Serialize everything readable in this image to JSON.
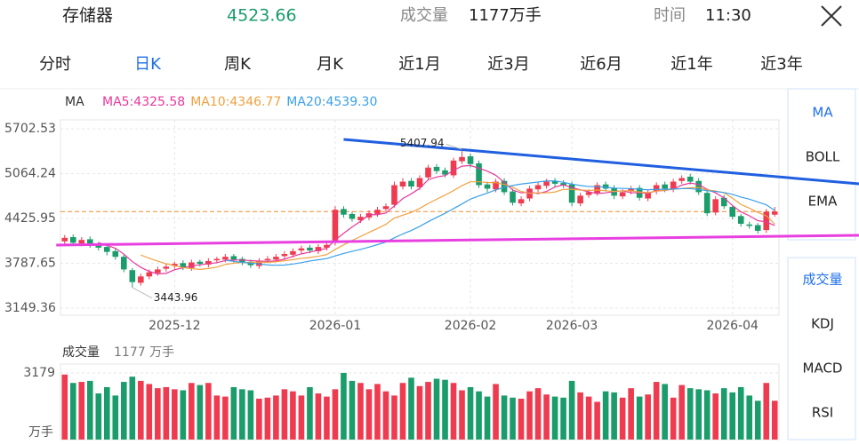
{
  "header": {
    "name": "存储器",
    "price": 4523.66,
    "price_color": "#1a9c6b",
    "volume_label": "成交量",
    "volume": "1177万手",
    "time_label": "时间",
    "time": "11:30"
  },
  "tabs": {
    "items": [
      "分时",
      "日K",
      "周K",
      "月K",
      "近1月",
      "近3月",
      "近6月",
      "近1年",
      "近3年"
    ],
    "active": 1
  },
  "indicators": {
    "main": [
      "MA",
      "BOLL",
      "EMA"
    ],
    "main_active": 0,
    "sub": [
      "成交量",
      "KDJ",
      "MACD",
      "RSI"
    ],
    "sub_active": 0
  },
  "chart_data": [
    {
      "type": "candlestick",
      "legend_title": "MA",
      "up_color": "#ef3b4f",
      "down_color": "#1a9c6b",
      "categories": [
        null,
        null,
        null,
        null,
        null,
        null,
        null,
        null,
        null,
        null,
        null,
        null,
        null,
        "2025-12",
        null,
        null,
        null,
        null,
        null,
        null,
        null,
        null,
        null,
        null,
        null,
        null,
        null,
        null,
        null,
        null,
        null,
        null,
        "2026-01",
        null,
        null,
        null,
        null,
        null,
        null,
        null,
        null,
        null,
        null,
        null,
        null,
        null,
        null,
        null,
        "2026-02",
        null,
        null,
        null,
        null,
        null,
        null,
        null,
        null,
        null,
        null,
        null,
        "2026-03",
        null,
        null,
        null,
        null,
        null,
        null,
        null,
        null,
        null,
        null,
        null,
        null,
        null,
        null,
        null,
        null,
        null,
        null,
        "2026-04",
        null,
        null,
        null,
        null,
        null
      ],
      "open": [
        4100,
        4160,
        4070,
        4130,
        4060,
        4020,
        3960,
        3880,
        3690,
        3510,
        3600,
        3650,
        3710,
        3750,
        3790,
        3720,
        3810,
        3770,
        3830,
        3840,
        3890,
        3850,
        3810,
        3750,
        3830,
        3840,
        3890,
        3910,
        3970,
        4010,
        3960,
        4010,
        4080,
        4560,
        4490,
        4400,
        4440,
        4490,
        4560,
        4620,
        4880,
        4960,
        4870,
        5010,
        5160,
        5110,
        5040,
        5240,
        5310,
        5210,
        4910,
        4840,
        4960,
        4810,
        4640,
        4710,
        4840,
        4890,
        4960,
        4930,
        4910,
        4640,
        4760,
        4790,
        4910,
        4860,
        4740,
        4810,
        4860,
        4710,
        4810,
        4910,
        4840,
        4960,
        5020,
        4960,
        4790,
        4510,
        4720,
        4590,
        4460,
        4340,
        4330,
        4260,
        4480
      ],
      "high": [
        4190,
        4200,
        4160,
        4170,
        4090,
        4050,
        4000,
        3910,
        3720,
        3640,
        3700,
        3740,
        3780,
        3810,
        3830,
        3840,
        3840,
        3860,
        3880,
        3920,
        3920,
        3880,
        3840,
        3860,
        3890,
        3920,
        3960,
        4000,
        4040,
        4050,
        4060,
        4090,
        4600,
        4600,
        4520,
        4490,
        4540,
        4590,
        4640,
        4950,
        5000,
        5000,
        5040,
        5190,
        5200,
        5150,
        5290,
        5407.94,
        5350,
        5250,
        4950,
        4990,
        5000,
        4850,
        4740,
        4890,
        4940,
        4990,
        5000,
        4970,
        4950,
        4790,
        4840,
        4940,
        4950,
        4900,
        4840,
        4890,
        4900,
        4840,
        4940,
        4950,
        4990,
        5040,
        5060,
        5000,
        4830,
        4740,
        4760,
        4620,
        4490,
        4380,
        4360,
        4560,
        4590
      ],
      "low": [
        4060,
        4040,
        4030,
        4010,
        3970,
        3900,
        3840,
        3660,
        3443.96,
        3470,
        3560,
        3610,
        3670,
        3710,
        3690,
        3680,
        3740,
        3730,
        3790,
        3800,
        3800,
        3760,
        3720,
        3710,
        3790,
        3800,
        3850,
        3870,
        3930,
        3930,
        3920,
        3970,
        4040,
        4440,
        4380,
        4360,
        4400,
        4450,
        4520,
        4580,
        4840,
        4840,
        4830,
        4970,
        5060,
        5010,
        5000,
        5200,
        5150,
        4860,
        4800,
        4800,
        4760,
        4610,
        4600,
        4670,
        4800,
        4850,
        4880,
        4860,
        4600,
        4600,
        4720,
        4750,
        4810,
        4700,
        4700,
        4770,
        4680,
        4670,
        4770,
        4800,
        4800,
        4920,
        4910,
        4760,
        4460,
        4470,
        4560,
        4410,
        4310,
        4280,
        4210,
        4220,
        4450
      ],
      "close": [
        4150,
        4080,
        4120,
        4050,
        4010,
        3950,
        3880,
        3700,
        3520,
        3600,
        3660,
        3700,
        3740,
        3780,
        3730,
        3800,
        3780,
        3820,
        3850,
        3880,
        3840,
        3800,
        3760,
        3820,
        3850,
        3880,
        3920,
        3960,
        4000,
        3970,
        4020,
        4050,
        4550,
        4480,
        4420,
        4450,
        4500,
        4550,
        4600,
        4900,
        4950,
        4880,
        5000,
        5150,
        5100,
        5050,
        5250,
        5300,
        5200,
        4900,
        4850,
        4950,
        4800,
        4650,
        4700,
        4850,
        4900,
        4950,
        4920,
        4900,
        4650,
        4750,
        4800,
        4900,
        4850,
        4750,
        4800,
        4850,
        4720,
        4800,
        4900,
        4850,
        4950,
        5000,
        4950,
        4800,
        4500,
        4700,
        4600,
        4450,
        4350,
        4320,
        4250,
        4520,
        4524
      ],
      "series": [
        {
          "name": "MA5:4325.58",
          "color": "#e8389b",
          "values": [
            null,
            null,
            null,
            null,
            4082,
            4042,
            4002,
            3918,
            3812,
            3730,
            3672,
            3636,
            3644,
            3696,
            3722,
            3750,
            3766,
            3782,
            3796,
            3826,
            3834,
            3834,
            3826,
            3820,
            3814,
            3822,
            3846,
            3886,
            3922,
            3946,
            3974,
            4000,
            4118,
            4214,
            4304,
            4386,
            4480,
            4480,
            4504,
            4604,
            4710,
            4776,
            4856,
            4976,
            5016,
            5036,
            5110,
            5170,
            5180,
            5140,
            5100,
            5040,
            4940,
            4830,
            4790,
            4800,
            4780,
            4810,
            4874,
            4904,
            4864,
            4834,
            4804,
            4780,
            4790,
            4810,
            4820,
            4790,
            4794,
            4784,
            4818,
            4824,
            4844,
            4900,
            4930,
            4910,
            4840,
            4790,
            4720,
            4610,
            4520,
            4464,
            4394,
            4378,
            4325.58
          ]
        },
        {
          "name": "MA10:4346.77",
          "color": "#f0a040",
          "values": [
            null,
            null,
            null,
            null,
            null,
            null,
            null,
            null,
            null,
            3906,
            3860,
            3818,
            3781,
            3754,
            3726,
            3711,
            3701,
            3713,
            3733,
            3771,
            3789,
            3799,
            3801,
            3805,
            3802,
            3810,
            3824,
            3840,
            3858,
            3870,
            3888,
            3911,
            3984,
            4050,
            4113,
            4170,
            4228,
            4283,
            4343,
            4432,
            4473,
            4511,
            4569,
            4639,
            4699,
            4758,
            4823,
            4893,
            4948,
            4948,
            4938,
            4935,
            4910,
            4870,
            4810,
            4785,
            4790,
            4790,
            4802,
            4840,
            4840,
            4830,
            4825,
            4830,
            4820,
            4810,
            4820,
            4820,
            4802,
            4792,
            4817,
            4827,
            4842,
            4852,
            4862,
            4867,
            4832,
            4817,
            4792,
            4715,
            4625,
            4572,
            4512,
            4464,
            4346.77
          ]
        },
        {
          "name": "MA20:4539.30",
          "color": "#3aa0e8",
          "values": [
            null,
            null,
            null,
            null,
            null,
            null,
            null,
            null,
            null,
            null,
            null,
            null,
            null,
            null,
            null,
            null,
            null,
            null,
            null,
            3830,
            3815,
            3800,
            3790,
            3779,
            3764,
            3760,
            3762,
            3777,
            3796,
            3820,
            3838,
            3855,
            3893,
            3927,
            3957,
            3986,
            4017,
            4053,
            4090,
            4150,
            4206,
            4255,
            4313,
            4379,
            4441,
            4499,
            4566,
            4632,
            4702,
            4746,
            4787,
            4832,
            4871,
            4895,
            4916,
            4930,
            4945,
            4960,
            4960,
            4940,
            4915,
            4895,
            4880,
            4880,
            4870,
            4858,
            4853,
            4850,
            4840,
            4835,
            4840,
            4840,
            4845,
            4850,
            4850,
            4838,
            4820,
            4810,
            4795,
            4770,
            4730,
            4700,
            4660,
            4620,
            4539.3
          ]
        }
      ],
      "trendlines": [
        {
          "color": "#1f5fe0",
          "from": [
            33,
            5551
          ],
          "to": [
            94,
            4919
          ]
        },
        {
          "color": "#e83fe0",
          "from": [
            -1,
            4047
          ],
          "to": [
            94,
            4186
          ]
        }
      ],
      "price_line_color": "#f08a30",
      "ylim": [
        3048,
        5829
      ],
      "yticks": [
        5702.53,
        5064.24,
        4425.95,
        3787.65,
        3149.36
      ],
      "grid": true
    },
    {
      "type": "bar",
      "title": "成交量",
      "subtitle": "1177 万手",
      "unit": "万手",
      "values": [
        3100,
        2700,
        2750,
        2800,
        2200,
        2500,
        2100,
        2750,
        3000,
        2800,
        2650,
        2450,
        2500,
        2400,
        2350,
        2700,
        2600,
        2700,
        2100,
        2050,
        2500,
        2400,
        2350,
        1950,
        2000,
        2100,
        2400,
        2300,
        2100,
        2500,
        2200,
        2050,
        2400,
        3179,
        2800,
        2700,
        2400,
        2650,
        2300,
        2100,
        2700,
        2950,
        2550,
        2750,
        2900,
        2850,
        2700,
        2350,
        2500,
        2300,
        2050,
        2650,
        2100,
        2000,
        1950,
        2300,
        2450,
        2150,
        2050,
        2000,
        2800,
        2250,
        2050,
        1800,
        2300,
        2250,
        2000,
        2450,
        2050,
        2150,
        2750,
        2650,
        2000,
        2600,
        2450,
        2400,
        2350,
        2200,
        2450,
        2250,
        2500,
        2100,
        1850,
        2700,
        1850
      ],
      "ylim": [
        0,
        3600
      ],
      "yticks": [
        3179
      ]
    }
  ]
}
